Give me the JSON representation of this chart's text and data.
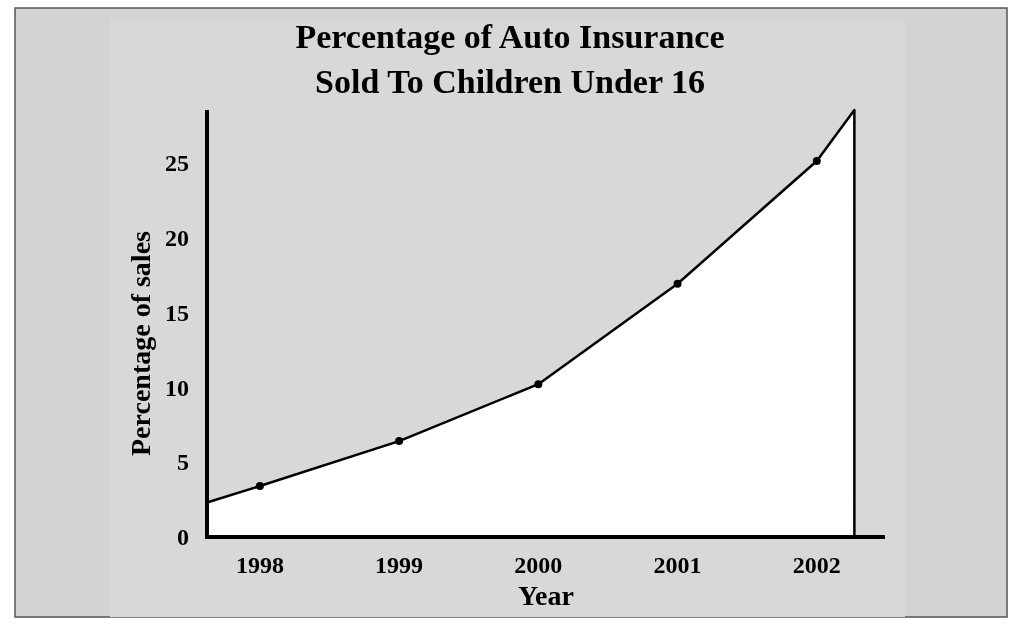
{
  "chart_data": {
    "type": "area",
    "title": "Percentage of Auto Insurance\nSold To Children Under 16",
    "xlabel": "Year",
    "ylabel": "Percentage of sales",
    "series": [
      {
        "color": "#000000",
        "x": [
          1997.62,
          1998,
          1999,
          2000,
          2001,
          2002,
          2002.27,
          2002.27
        ],
        "values": [
          2.3,
          3.4,
          6.4,
          10.2,
          16.9,
          25.1,
          28.5,
          0
        ],
        "marker": "none"
      },
      {
        "type": "scatter",
        "color": "#000000",
        "x": [
          1998,
          1999,
          2000,
          2001,
          2002
        ],
        "values": [
          3.4,
          6.4,
          10.2,
          16.9,
          25.1
        ],
        "marker": "circle"
      }
    ],
    "xlim": [
      1997.62,
      2002.49
    ],
    "xticks": [
      1998,
      1999,
      2000,
      2001,
      2002
    ],
    "ylim": [
      0,
      28.5
    ],
    "yticks": [
      0,
      5,
      10,
      15,
      20,
      25
    ],
    "grid": false
  }
}
